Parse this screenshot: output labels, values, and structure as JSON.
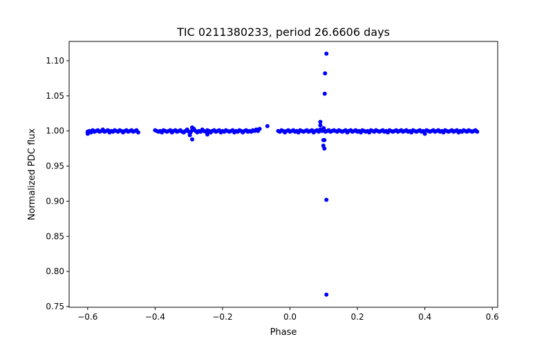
{
  "chart_data": {
    "type": "scatter",
    "title": "TIC 0211380233, period 26.6606 days",
    "xlabel": "Phase",
    "ylabel": "Normalized PDC flux",
    "xlim": [
      -0.655,
      0.616
    ],
    "ylim": [
      0.749,
      1.1275
    ],
    "xticks": [
      -0.6,
      -0.4,
      -0.2,
      0.0,
      0.2,
      0.4,
      0.6
    ],
    "xtick_labels": [
      "−0.6",
      "−0.4",
      "−0.2",
      "0.0",
      "0.2",
      "0.4",
      "0.6"
    ],
    "yticks": [
      0.75,
      0.8,
      0.85,
      0.9,
      0.95,
      1.0,
      1.05,
      1.1
    ],
    "ytick_labels": [
      "0.75",
      "0.80",
      "0.85",
      "0.90",
      "0.95",
      "1.00",
      "1.05",
      "1.10"
    ],
    "grid": false,
    "color": "#0000ff",
    "baseline_segments": [
      {
        "x_start": -0.6,
        "step": 0.005,
        "flux": [
          0.999,
          1.0,
          0.998,
          1.001,
          0.999,
          1.0,
          1.001,
          0.999,
          1.0,
          1.002,
          0.999,
          1.0,
          1.001,
          0.998,
          1.0,
          0.999,
          1.001,
          1.0,
          0.999,
          1.001,
          1.0,
          0.998,
          1.0,
          1.001,
          0.999,
          1.0,
          1.001,
          0.999,
          1.0,
          1.001,
          0.998
        ]
      },
      {
        "x_start": -0.4,
        "step": 0.005,
        "flux": [
          1.001,
          1.0,
          0.999,
          1.0,
          0.998,
          1.001,
          1.0,
          0.999,
          1.0,
          1.001,
          0.998,
          1.0,
          1.001,
          0.999,
          1.0,
          1.001,
          0.999,
          0.998,
          1.0,
          1.002,
          0.999,
          0.998,
          1.001,
          1.003,
          1.0,
          0.998,
          1.0,
          0.999,
          1.002,
          1.0,
          0.999,
          1.001,
          1.0,
          0.998,
          1.0,
          1.001,
          0.999,
          1.0,
          1.001,
          0.998,
          1.0,
          0.999,
          1.001,
          1.0,
          0.999,
          1.0,
          1.001,
          0.998,
          1.0,
          0.999,
          1.001,
          1.0,
          0.998,
          1.0,
          1.001,
          0.999,
          1.0,
          0.999,
          1.001,
          1.0,
          1.002,
          1.0,
          1.003
        ]
      },
      {
        "x_start": -0.035,
        "step": 0.005,
        "flux": [
          1.0,
          0.999,
          1.001,
          1.0,
          0.998,
          1.0,
          1.001,
          0.999,
          1.0,
          1.001,
          0.999,
          1.0,
          0.998,
          1.001,
          1.0,
          0.999,
          1.0,
          1.001,
          0.999,
          1.0,
          1.001,
          0.998,
          1.0,
          1.001,
          0.999,
          1.002,
          1.0,
          1.001,
          0.999,
          1.0,
          1.001,
          0.999,
          1.0,
          1.001,
          1.0,
          0.999,
          1.001,
          1.0,
          0.999,
          1.0,
          1.001,
          0.998,
          1.0,
          1.001,
          0.999,
          1.0,
          1.001,
          0.999,
          1.0,
          0.998,
          1.001,
          1.0,
          0.999,
          1.0,
          0.998,
          1.001,
          1.0,
          0.999,
          1.001,
          1.0,
          0.999,
          1.0,
          1.001,
          0.999,
          1.0,
          0.998,
          1.001,
          1.0,
          0.999,
          1.0,
          1.001,
          0.999,
          1.0,
          1.001,
          0.999,
          1.0,
          1.001,
          0.999,
          1.0,
          0.998,
          1.001,
          1.0,
          0.999,
          1.0,
          1.001,
          0.999,
          1.0,
          0.996,
          1.001,
          1.0,
          0.999,
          1.0,
          1.001,
          0.999,
          1.0,
          1.001,
          0.999,
          1.0,
          0.998,
          1.001,
          1.0,
          0.999,
          1.0,
          1.001,
          0.999,
          1.0,
          1.001,
          0.998,
          1.0,
          0.999,
          1.001,
          1.0,
          0.999,
          1.001,
          1.0,
          0.999,
          1.0,
          1.001,
          0.999
        ]
      }
    ],
    "outliers": [
      {
        "x": 0.108,
        "y": 1.11
      },
      {
        "x": 0.104,
        "y": 1.082
      },
      {
        "x": 0.103,
        "y": 1.053
      },
      {
        "x": 0.09,
        "y": 1.013
      },
      {
        "x": 0.09,
        "y": 1.008
      },
      {
        "x": 0.1,
        "y": 1.004
      },
      {
        "x": 0.099,
        "y": 0.987
      },
      {
        "x": 0.102,
        "y": 0.987
      },
      {
        "x": 0.099,
        "y": 0.979
      },
      {
        "x": 0.102,
        "y": 0.975
      },
      {
        "x": 0.108,
        "y": 0.902
      },
      {
        "x": 0.108,
        "y": 0.767
      },
      {
        "x": -0.29,
        "y": 1.005
      },
      {
        "x": -0.29,
        "y": 0.988
      },
      {
        "x": -0.297,
        "y": 0.994
      },
      {
        "x": -0.245,
        "y": 0.995
      },
      {
        "x": -0.067,
        "y": 1.007
      },
      {
        "x": -0.6,
        "y": 0.996
      }
    ]
  }
}
